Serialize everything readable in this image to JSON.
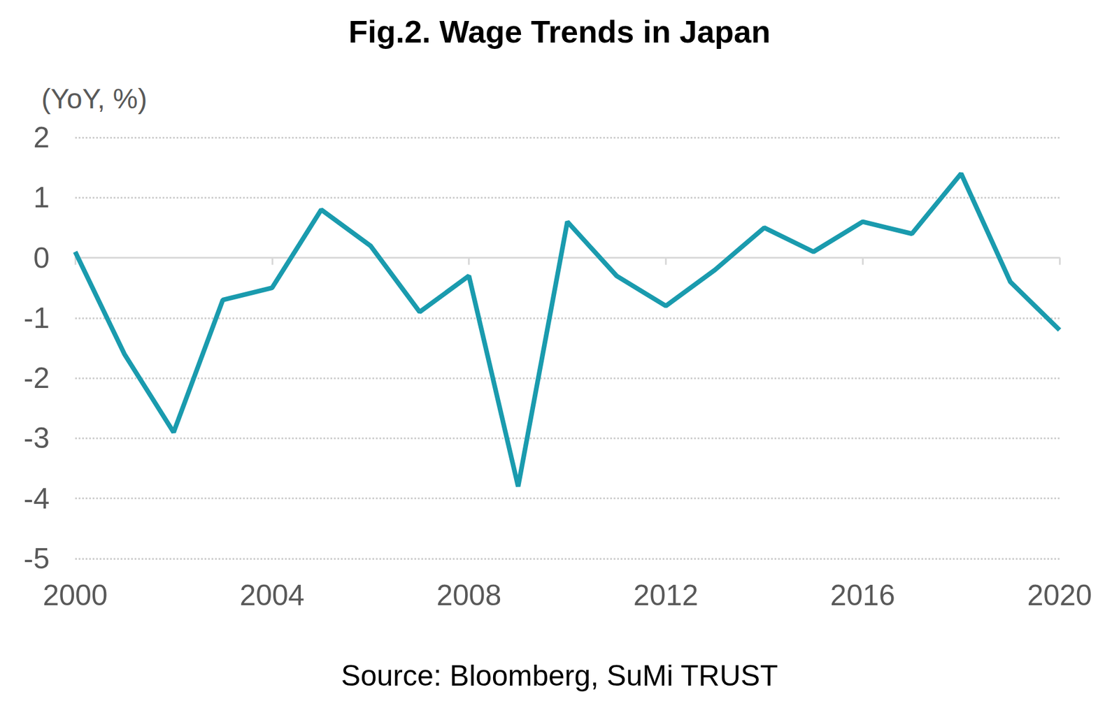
{
  "chart_data": {
    "type": "line",
    "title": "Fig.2. Wage Trends in Japan",
    "ylabel": "(YoY, %)",
    "caption": "Source: Bloomberg, SuMi TRUST",
    "x": [
      2000,
      2001,
      2002,
      2003,
      2004,
      2005,
      2006,
      2007,
      2008,
      2009,
      2010,
      2011,
      2012,
      2013,
      2014,
      2015,
      2016,
      2017,
      2018,
      2019,
      2020
    ],
    "values": [
      0.1,
      -1.6,
      -2.9,
      -0.7,
      -0.5,
      0.8,
      0.2,
      -0.9,
      -0.3,
      -3.8,
      0.6,
      -0.3,
      -0.8,
      -0.2,
      0.5,
      0.1,
      0.6,
      0.4,
      1.4,
      -0.4,
      -1.2
    ],
    "color": "#1a9bae",
    "xlim": [
      2000,
      2020
    ],
    "xticks": [
      2000,
      2004,
      2008,
      2012,
      2016,
      2020
    ],
    "ylim": [
      -5,
      2
    ],
    "yticks": [
      -5,
      -4,
      -3,
      -2,
      -1,
      0,
      1,
      2
    ],
    "grid": true
  }
}
